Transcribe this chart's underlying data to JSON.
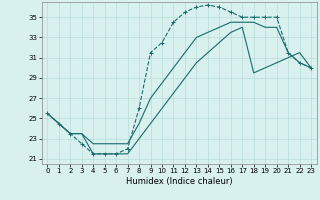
{
  "xlabel": "Humidex (Indice chaleur)",
  "bg_color": "#d8f0ee",
  "grid_color": "#b8dcd8",
  "line_color": "#1a6b6b",
  "xlim": [
    -0.5,
    23.5
  ],
  "ylim": [
    20.5,
    36.5
  ],
  "xticks": [
    0,
    1,
    2,
    3,
    4,
    5,
    6,
    7,
    8,
    9,
    10,
    11,
    12,
    13,
    14,
    15,
    16,
    17,
    18,
    19,
    20,
    21,
    22,
    23
  ],
  "yticks": [
    21,
    23,
    25,
    27,
    29,
    31,
    33,
    35
  ],
  "line1_x": [
    0,
    1,
    2,
    3,
    4,
    5,
    6,
    7,
    8,
    9,
    10,
    11,
    12,
    13,
    14,
    15,
    16,
    17,
    18,
    19,
    20,
    21,
    22,
    23
  ],
  "line1_y": [
    25.5,
    24.5,
    23.5,
    22.5,
    21.5,
    21.5,
    21.5,
    22.0,
    26.0,
    31.5,
    32.5,
    34.5,
    35.5,
    36.0,
    36.2,
    36.0,
    35.5,
    35.0,
    35.0,
    35.0,
    35.0,
    31.5,
    30.5,
    30.0
  ],
  "line2_x": [
    0,
    1,
    2,
    3,
    4,
    5,
    6,
    7,
    8,
    9,
    10,
    11,
    12,
    13,
    14,
    15,
    16,
    17,
    18,
    19,
    20,
    21,
    22,
    23
  ],
  "line2_y": [
    25.5,
    24.5,
    23.5,
    23.5,
    21.5,
    21.5,
    21.5,
    21.5,
    23.0,
    24.5,
    26.0,
    27.5,
    29.0,
    30.5,
    31.5,
    32.5,
    33.5,
    34.0,
    29.5,
    30.0,
    30.5,
    31.0,
    31.5,
    30.0
  ],
  "line3_x": [
    0,
    1,
    2,
    3,
    4,
    5,
    6,
    7,
    8,
    9,
    10,
    11,
    12,
    13,
    14,
    15,
    16,
    17,
    18,
    19,
    20,
    21,
    22,
    23
  ],
  "line3_y": [
    25.5,
    24.5,
    23.5,
    23.5,
    22.5,
    22.5,
    22.5,
    22.5,
    24.5,
    27.0,
    28.5,
    30.0,
    31.5,
    33.0,
    33.5,
    34.0,
    34.5,
    34.5,
    34.5,
    34.0,
    34.0,
    31.5,
    30.5,
    30.0
  ]
}
